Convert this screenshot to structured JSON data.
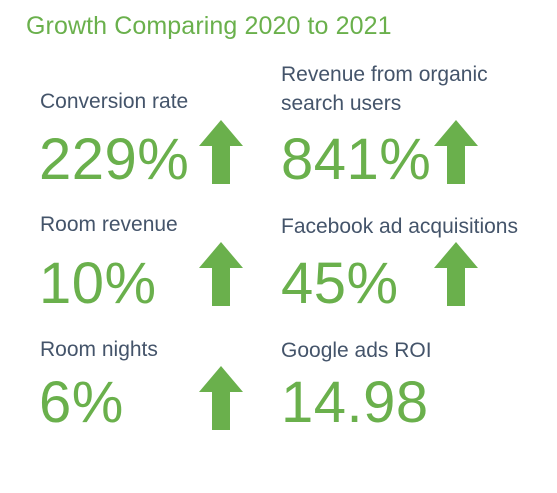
{
  "title": "Growth Comparing 2020 to 2021",
  "colors": {
    "accent": "#6ab04c",
    "label": "#44546a",
    "background": "#ffffff"
  },
  "metrics": [
    {
      "label": "Conversion rate",
      "value": "229%",
      "trend_icon": "arrow-up-icon"
    },
    {
      "label": "Revenue from organic search users",
      "label_line1": "Revenue from organic",
      "label_line2": "search users",
      "value": "841%",
      "trend_icon": "arrow-up-icon"
    },
    {
      "label": "Room revenue",
      "value": "10%",
      "trend_icon": "arrow-up-icon"
    },
    {
      "label": "Facebook ad acquisitions",
      "value": "45%",
      "trend_icon": "arrow-up-icon"
    },
    {
      "label": "Room nights",
      "value": "6%",
      "trend_icon": "arrow-up-icon"
    },
    {
      "label": "Google ads ROI",
      "value": "14.98"
    }
  ]
}
